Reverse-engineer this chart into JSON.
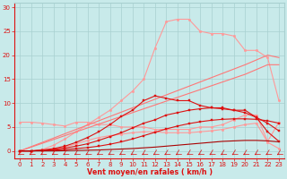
{
  "x": [
    0,
    1,
    2,
    3,
    4,
    5,
    6,
    7,
    8,
    9,
    10,
    11,
    12,
    13,
    14,
    15,
    16,
    17,
    18,
    19,
    20,
    21,
    22,
    23
  ],
  "line_pink_top": [
    0.0,
    0.0,
    0.3,
    1.2,
    2.5,
    4.0,
    5.5,
    7.0,
    8.5,
    10.5,
    12.5,
    15.0,
    21.5,
    27.0,
    27.5,
    27.5,
    25.0,
    24.5,
    24.5,
    24.0,
    21.0,
    21.0,
    19.5,
    10.5
  ],
  "line_pink_flat": [
    6.0,
    6.0,
    5.8,
    5.5,
    5.2,
    6.0,
    6.0,
    5.5,
    5.5,
    5.0,
    5.0,
    5.0,
    4.5,
    4.5,
    4.5,
    4.5,
    5.0,
    5.0,
    5.5,
    6.5,
    7.5,
    7.5,
    2.0,
    6.0
  ],
  "line_pink_low": [
    0.0,
    0.0,
    0.1,
    0.3,
    0.8,
    1.5,
    2.2,
    2.8,
    3.2,
    3.5,
    3.8,
    4.0,
    4.0,
    3.8,
    3.8,
    3.8,
    4.0,
    4.2,
    4.5,
    5.0,
    5.5,
    5.8,
    1.8,
    0.5
  ],
  "line_diag1": [
    0.0,
    0.9,
    1.8,
    2.7,
    3.6,
    4.5,
    5.4,
    6.3,
    7.2,
    8.1,
    9.0,
    9.9,
    10.8,
    11.7,
    12.6,
    13.5,
    14.4,
    15.3,
    16.2,
    17.1,
    18.0,
    19.0,
    20.0,
    19.5
  ],
  "line_diag2": [
    0.0,
    0.8,
    1.6,
    2.4,
    3.2,
    4.0,
    4.8,
    5.6,
    6.4,
    7.2,
    8.0,
    8.8,
    9.6,
    10.4,
    11.2,
    12.0,
    12.8,
    13.6,
    14.4,
    15.2,
    16.0,
    17.0,
    18.0,
    18.0
  ],
  "line_red_peak": [
    0.0,
    0.0,
    0.2,
    0.5,
    1.0,
    1.8,
    2.8,
    4.0,
    5.5,
    7.2,
    8.5,
    10.5,
    11.5,
    11.0,
    10.5,
    10.5,
    9.5,
    9.0,
    9.0,
    8.5,
    8.5,
    7.0,
    4.0,
    2.0
  ],
  "line_red_mid": [
    0.0,
    0.0,
    0.1,
    0.3,
    0.6,
    1.0,
    1.5,
    2.2,
    3.0,
    3.8,
    4.8,
    5.8,
    6.5,
    7.5,
    8.0,
    8.5,
    8.8,
    9.0,
    8.8,
    8.5,
    8.0,
    7.0,
    5.8,
    4.2
  ],
  "line_red_low": [
    0.0,
    0.0,
    0.1,
    0.2,
    0.3,
    0.5,
    0.7,
    1.0,
    1.4,
    1.9,
    2.5,
    3.2,
    3.9,
    4.6,
    5.2,
    5.7,
    6.1,
    6.4,
    6.6,
    6.7,
    6.7,
    6.6,
    6.3,
    5.8
  ],
  "line_red_vlow": [
    0.0,
    0.0,
    0.0,
    0.0,
    0.05,
    0.1,
    0.15,
    0.2,
    0.3,
    0.4,
    0.5,
    0.65,
    0.8,
    1.0,
    1.2,
    1.4,
    1.6,
    1.8,
    2.0,
    2.1,
    2.2,
    2.2,
    2.1,
    1.9
  ],
  "bg_color": "#c8eaea",
  "grid_color": "#a8d0d0",
  "pink_color": "#ff9999",
  "pink_dark": "#ff7777",
  "red_color": "#dd1111",
  "red_dark": "#aa0000",
  "xlabel": "Vent moyen/en rafales ( km/h )",
  "ylim": [
    -1.5,
    31
  ],
  "xlim": [
    -0.5,
    23.5
  ],
  "yticks": [
    0,
    5,
    10,
    15,
    20,
    25,
    30
  ],
  "xticks": [
    0,
    1,
    2,
    3,
    4,
    5,
    6,
    7,
    8,
    9,
    10,
    11,
    12,
    13,
    14,
    15,
    16,
    17,
    18,
    19,
    20,
    21,
    22,
    23
  ]
}
